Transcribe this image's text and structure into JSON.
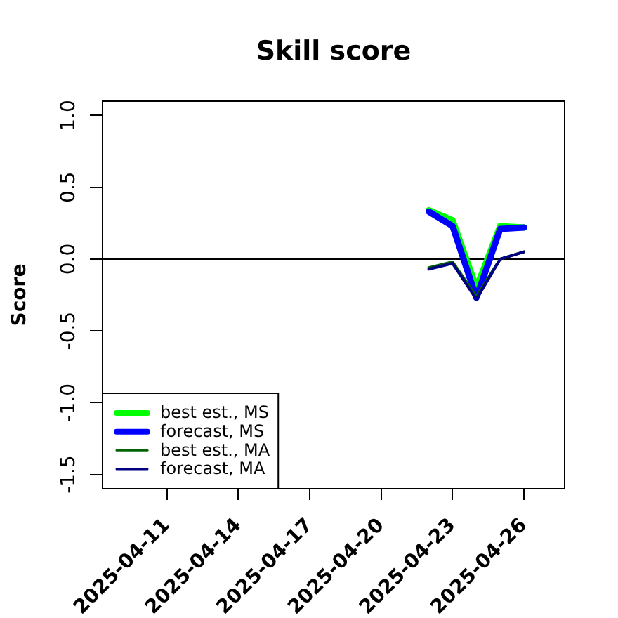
{
  "chart_data": {
    "type": "line",
    "title": "Skill score",
    "ylabel": "Score",
    "x": [
      "2025-04-22",
      "2025-04-23",
      "2025-04-24",
      "2025-04-25",
      "2025-04-26"
    ],
    "series": [
      {
        "name": "best est., MS",
        "color": "#00ff00",
        "values": [
          0.34,
          0.27,
          -0.2,
          0.23,
          0.22
        ]
      },
      {
        "name": "forecast, MS",
        "color": "#0000ff",
        "values": [
          0.33,
          0.23,
          -0.27,
          0.21,
          0.22
        ]
      },
      {
        "name": "best est., MA",
        "color": "#006400",
        "values": [
          -0.06,
          -0.02,
          -0.26,
          0.0,
          0.05
        ]
      },
      {
        "name": "forecast, MA",
        "color": "#000080",
        "values": [
          -0.07,
          -0.03,
          -0.28,
          0.0,
          0.05
        ]
      }
    ],
    "xlim": [
      "2025-04-08T07:00",
      "2025-04-27T17:00"
    ],
    "xticks": [
      "2025-04-11",
      "2025-04-14",
      "2025-04-17",
      "2025-04-20",
      "2025-04-23",
      "2025-04-26"
    ],
    "ylim": [
      -1.6,
      1.1
    ],
    "yticks": [
      -1.5,
      {
        "value": -1,
        "label": "-1.0"
      },
      -0.5,
      {
        "value": 0,
        "label": "0.0"
      },
      0.5,
      {
        "value": 1,
        "label": "1.0"
      }
    ],
    "ref_lines": [
      {
        "axis": "y",
        "value": 0,
        "color": "#000000"
      }
    ],
    "legend": "bottom left",
    "line_style": "solid"
  }
}
